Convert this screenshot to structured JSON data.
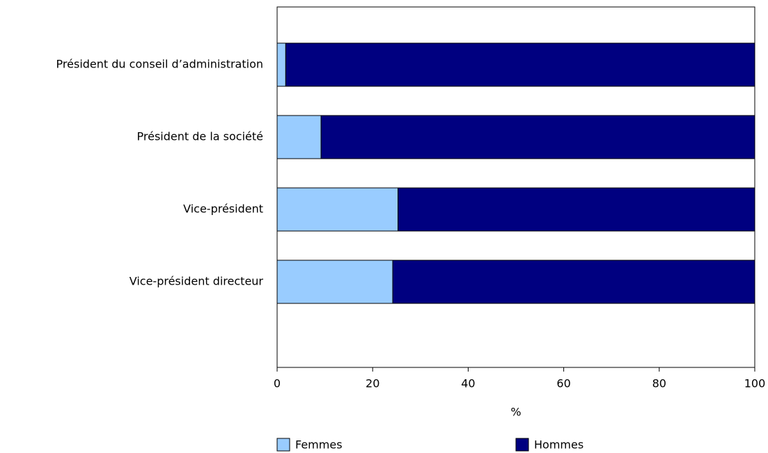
{
  "chart_data": {
    "type": "bar",
    "orientation": "horizontal",
    "stacked": true,
    "categories": [
      "Président du conseil d’administration",
      "Président de la société",
      "Vice-président",
      "Vice-président directeur"
    ],
    "series": [
      {
        "name": "Femmes",
        "color": "#99ccff",
        "values": [
          1.8,
          9.2,
          25.3,
          24.2
        ]
      },
      {
        "name": "Hommes",
        "color": "#000080",
        "values": [
          98.2,
          90.8,
          74.7,
          75.8
        ]
      }
    ],
    "xlabel": "%",
    "xlim": [
      0,
      100
    ],
    "xticks": [
      0,
      20,
      40,
      60,
      80,
      100
    ]
  }
}
